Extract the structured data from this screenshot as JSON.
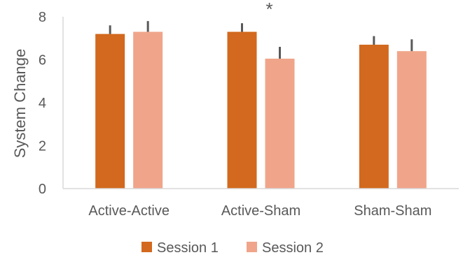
{
  "chart_data": {
    "type": "bar",
    "title": "",
    "xlabel": "",
    "ylabel": "System Change",
    "ylim": [
      0,
      8
    ],
    "yticks": [
      "0",
      "2",
      "4",
      "6",
      "8"
    ],
    "grid": false,
    "legend_position": "bottom",
    "categories": [
      "Active-Active",
      "Active-Sham",
      "Sham-Sham"
    ],
    "series": [
      {
        "name": "Session 1",
        "color": "#d2691e",
        "values": [
          7.2,
          7.3,
          6.7
        ],
        "errors": [
          0.4,
          0.4,
          0.4
        ]
      },
      {
        "name": "Session 2",
        "color": "#f0a58a",
        "values": [
          7.3,
          6.05,
          6.4
        ],
        "errors": [
          0.5,
          0.55,
          0.55
        ]
      }
    ],
    "annotations": [
      {
        "text": "*",
        "category": "Active-Sham"
      }
    ]
  }
}
